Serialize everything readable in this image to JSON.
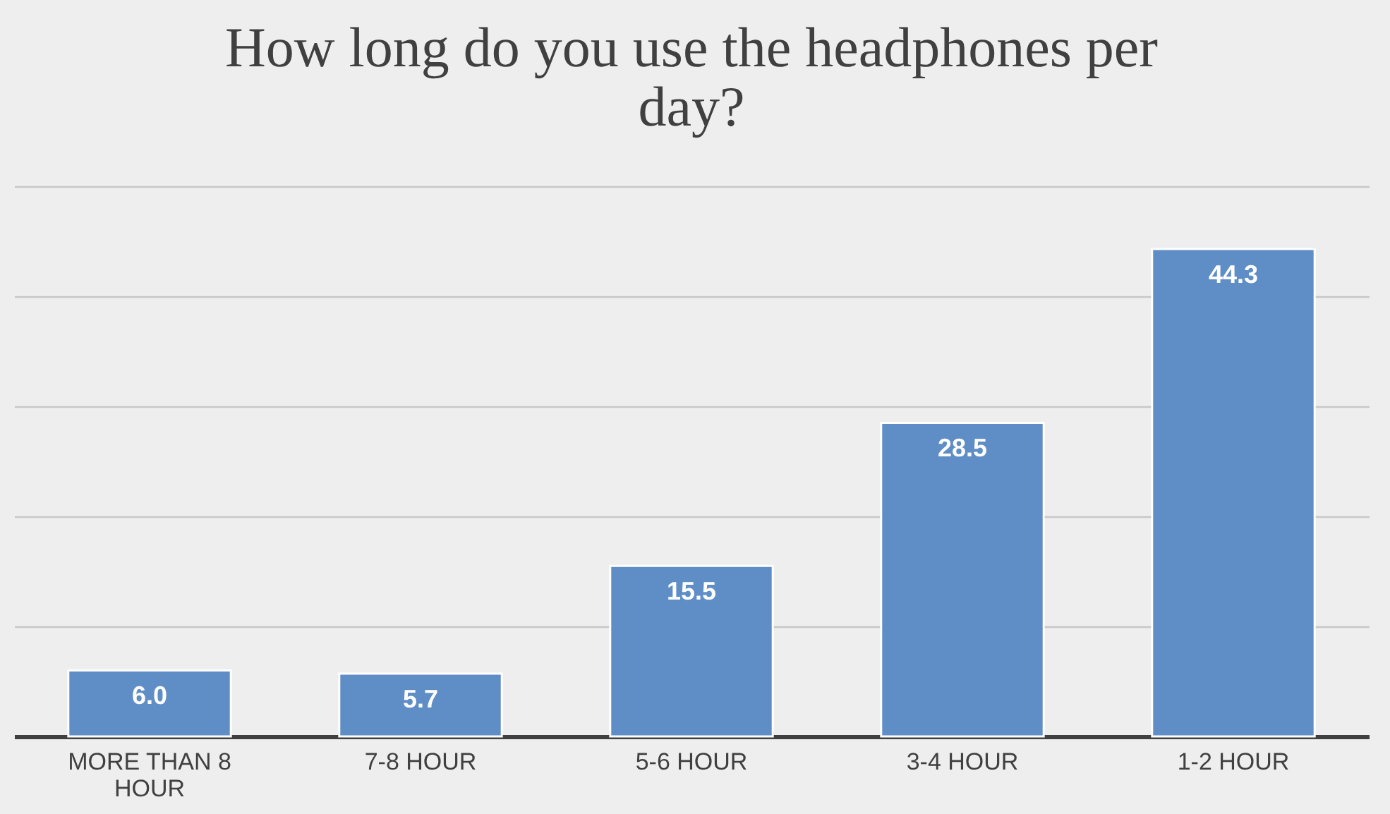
{
  "chart_data": {
    "type": "bar",
    "title": "How long do you use the headphones per day?",
    "categories": [
      "MORE THAN 8 HOUR",
      "7-8 HOUR",
      "5-6 HOUR",
      "3-4 HOUR",
      "1-2 HOUR"
    ],
    "values": [
      6.0,
      5.7,
      15.5,
      28.5,
      44.3
    ],
    "value_labels": [
      "6.0",
      "5.7",
      "15.5",
      "28.5",
      "44.3"
    ],
    "color": "#5f8dc6",
    "ylim": [
      0,
      50
    ],
    "yticks": [
      {
        "value": 0,
        "label": null
      },
      {
        "value": 10,
        "label": null
      },
      {
        "value": 20,
        "label": null
      },
      {
        "value": 30,
        "label": null
      },
      {
        "value": 40,
        "label": null
      },
      {
        "value": 50,
        "label": null
      }
    ],
    "tick_labels": "x",
    "grid": "y"
  }
}
